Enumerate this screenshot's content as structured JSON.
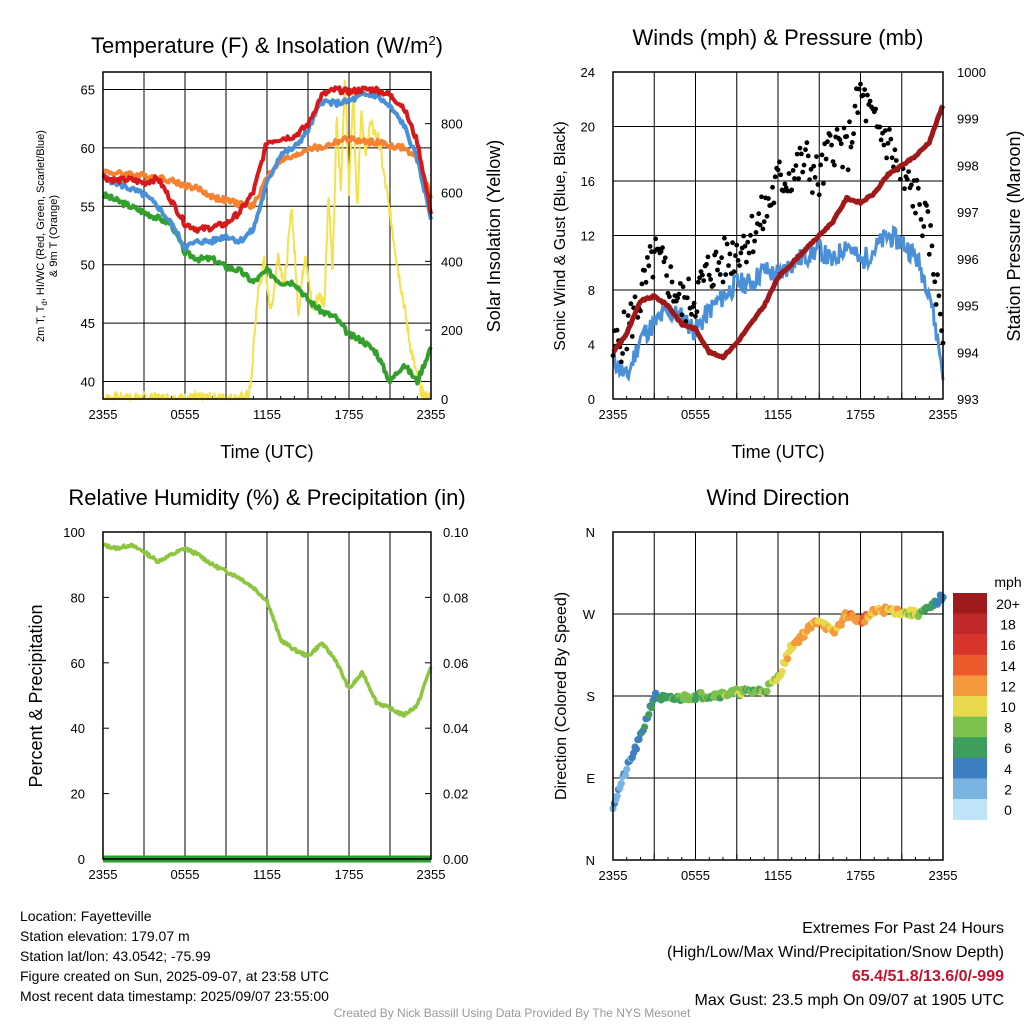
{
  "colors": {
    "temp": "#d7191c",
    "dewpoint": "#33a02c",
    "hiwc": "#4a90d9",
    "temp9m": "#f58231",
    "solar": "#f5e14c",
    "wind": "#4a90d9",
    "gust": "#000000",
    "pressure": "#a01818",
    "rh": "#8cc63f",
    "precip": "#2e9e35",
    "extremes": "#c8102e",
    "credit": "#999999"
  },
  "chart_data": [
    {
      "type": "line",
      "title": "Temperature (F) & Insolation (W/m²)",
      "xlabel": "Time (UTC)",
      "ylabel": "2m T, Td, HI/WC (Red, Green, Scarlet/Blue) & 9m T (Orange)",
      "ylabel_right": "Solar Insolation (Yellow)",
      "x_ticks": [
        "2355",
        "0555",
        "1155",
        "1755",
        "2355"
      ],
      "y_ticks": [
        "40",
        "45",
        "50",
        "55",
        "60",
        "65"
      ],
      "y_ticks_right": [
        "0",
        "200",
        "400",
        "600",
        "800"
      ],
      "ylim": [
        38.5,
        66.5
      ],
      "ylim_right": [
        0,
        950
      ],
      "grid": true,
      "x": [
        0,
        1,
        2,
        3,
        4,
        5,
        6,
        7,
        8,
        9,
        10,
        11,
        12,
        13,
        14,
        15,
        16,
        17,
        18,
        19,
        20,
        21,
        22,
        23,
        24
      ],
      "series": [
        {
          "key": "temp",
          "values": [
            57.5,
            57.2,
            57.3,
            57.0,
            57.4,
            55.5,
            53.5,
            53.0,
            53.2,
            53.5,
            54.5,
            56.2,
            60.5,
            60.8,
            61.0,
            62.0,
            64.5,
            65.0,
            64.8,
            65.0,
            65.0,
            64.5,
            63.5,
            60.5,
            54.5
          ]
        },
        {
          "key": "hiwc",
          "values": [
            57.5,
            57.0,
            56.5,
            56.0,
            55.0,
            53.5,
            51.5,
            52.0,
            52.0,
            52.5,
            52.0,
            53.0,
            57.0,
            59.5,
            60.0,
            61.5,
            64.0,
            63.8,
            64.0,
            64.5,
            64.5,
            63.5,
            62.0,
            59.0,
            54.0
          ]
        },
        {
          "key": "temp9m",
          "values": [
            58.0,
            57.8,
            57.8,
            57.6,
            57.5,
            57.2,
            56.8,
            56.5,
            55.8,
            55.5,
            55.2,
            55.0,
            57.5,
            59.0,
            59.2,
            60.0,
            60.0,
            60.5,
            60.8,
            60.5,
            60.5,
            60.2,
            60.0,
            59.0,
            55.8
          ]
        },
        {
          "key": "dewpoint",
          "values": [
            56.0,
            55.5,
            55.0,
            54.5,
            54.0,
            53.5,
            51.0,
            50.5,
            50.5,
            49.8,
            49.5,
            48.5,
            49.5,
            48.5,
            48.5,
            47.0,
            46.0,
            45.5,
            44.0,
            43.5,
            42.5,
            40.0,
            41.5,
            40.0,
            43.0
          ]
        }
      ],
      "solar": {
        "x": [
          0,
          3,
          6,
          9,
          10.4,
          10.8,
          11.3,
          11.8,
          12.3,
          12.8,
          13.3,
          13.8,
          14.3,
          14.8,
          15.3,
          15.8,
          16.2,
          16.5,
          16.8,
          17.1,
          17.4,
          17.7,
          18.0,
          18.3,
          18.6,
          18.9,
          19.2,
          19.5,
          19.8,
          20.2,
          20.6,
          21.0,
          21.5,
          22.0,
          22.5,
          23.0,
          23.4,
          24
        ],
        "values": [
          0,
          0,
          0,
          0,
          0,
          30,
          300,
          400,
          250,
          420,
          330,
          560,
          250,
          430,
          260,
          300,
          280,
          600,
          360,
          820,
          600,
          950,
          600,
          900,
          550,
          850,
          700,
          800,
          780,
          750,
          640,
          540,
          400,
          280,
          150,
          60,
          10,
          0
        ]
      }
    },
    {
      "type": "scatter",
      "title": "Winds (mph) & Pressure (mb)",
      "xlabel": "Time (UTC)",
      "ylabel": "Sonic Wind & Gust (Blue, Black)",
      "ylabel_right": "Station Pressure (Maroon)",
      "x_ticks": [
        "2355",
        "0555",
        "1155",
        "1755",
        "2355"
      ],
      "y_ticks": [
        "0",
        "4",
        "8",
        "12",
        "16",
        "20",
        "24"
      ],
      "y_ticks_right": [
        "993",
        "994",
        "995",
        "996",
        "997",
        "998",
        "999",
        "1000"
      ],
      "ylim": [
        0,
        24
      ],
      "ylim_right": [
        993,
        1000
      ],
      "grid": true,
      "x": [
        0,
        1,
        2,
        3,
        4,
        5,
        6,
        7,
        8,
        9,
        10,
        11,
        12,
        13,
        14,
        15,
        16,
        17,
        18,
        19,
        20,
        21,
        22,
        23,
        24
      ],
      "series": [
        {
          "key": "wind",
          "values": [
            3.0,
            1.5,
            4.5,
            5.5,
            6.5,
            6.0,
            5.0,
            6.5,
            7.5,
            8.5,
            8.5,
            9.5,
            9.0,
            10.0,
            10.5,
            11.0,
            10.0,
            11.5,
            10.0,
            11.0,
            12.0,
            11.5,
            10.5,
            8.0,
            2.0
          ]
        },
        {
          "key": "gust",
          "values": [
            3.5,
            5.0,
            7.5,
            10.5,
            9.0,
            7.0,
            7.5,
            9.5,
            10.0,
            11.0,
            12.0,
            13.5,
            16.0,
            16.5,
            17.5,
            16.0,
            19.0,
            18.0,
            22.5,
            20.0,
            19.0,
            16.0,
            15.0,
            12.0,
            5.0
          ]
        },
        {
          "key": "pressure",
          "values": [
            994.0,
            994.4,
            995.1,
            995.2,
            995.0,
            994.6,
            994.5,
            994.0,
            993.9,
            994.2,
            994.6,
            995.0,
            995.6,
            995.9,
            996.2,
            996.5,
            996.8,
            997.3,
            997.2,
            997.4,
            997.8,
            998.0,
            998.2,
            998.5,
            999.3
          ]
        }
      ]
    },
    {
      "type": "line",
      "title": "Relative Humidity (%) & Precipitation (in)",
      "ylabel": "Percent & Precipitation",
      "x_ticks": [
        "2355",
        "0555",
        "1155",
        "1755",
        "2355"
      ],
      "y_ticks": [
        "0",
        "20",
        "40",
        "60",
        "80",
        "100"
      ],
      "y_ticks_right": [
        "0.00",
        "0.02",
        "0.04",
        "0.06",
        "0.08",
        "0.10"
      ],
      "ylim": [
        0,
        100
      ],
      "ylim_right": [
        0,
        0.1
      ],
      "grid": true,
      "x": [
        0,
        1,
        2,
        3,
        4,
        5,
        6,
        7,
        8,
        9,
        10,
        11,
        12,
        13,
        14,
        15,
        16,
        17,
        18,
        19,
        20,
        21,
        22,
        23,
        24
      ],
      "series": [
        {
          "key": "rh",
          "values": [
            96,
            95,
            96,
            94,
            91,
            93,
            95,
            93,
            90,
            88,
            86,
            83,
            79,
            67,
            64,
            62,
            66,
            61,
            52,
            57,
            48,
            46,
            44,
            47,
            59
          ]
        },
        {
          "key": "precip",
          "values": [
            0,
            0,
            0,
            0,
            0,
            0,
            0,
            0,
            0,
            0,
            0,
            0,
            0,
            0,
            0,
            0,
            0,
            0,
            0,
            0,
            0,
            0,
            0,
            0,
            0
          ]
        }
      ]
    },
    {
      "type": "scatter",
      "title": "Wind Direction",
      "ylabel": "Direction (Colored By Speed)",
      "x_ticks": [
        "2355",
        "0555",
        "1155",
        "1755",
        "2355"
      ],
      "y_ticks": [
        "N",
        "E",
        "S",
        "W",
        "N"
      ],
      "ylim": [
        0,
        360
      ],
      "legend_title": "mph",
      "legend_labels": [
        "20+",
        "18",
        "16",
        "14",
        "12",
        "10",
        "8",
        "6",
        "4",
        "2",
        "0"
      ],
      "legend_colors": [
        "#9e1b1b",
        "#c0282a",
        "#d7352c",
        "#ea5a2a",
        "#f59a3c",
        "#e9d84c",
        "#7cc04e",
        "#3e9e5e",
        "#3d7fc1",
        "#79b4e3",
        "#bfe3f7"
      ],
      "x": [
        0,
        1,
        2,
        3,
        4,
        5,
        6,
        7,
        8,
        9,
        10,
        11,
        12,
        13,
        14,
        15,
        16,
        17,
        18,
        19,
        20,
        21,
        22,
        23,
        24
      ],
      "direction": [
        60,
        100,
        135,
        180,
        176,
        178,
        180,
        181,
        182,
        184,
        185,
        186,
        200,
        235,
        250,
        265,
        248,
        270,
        262,
        272,
        275,
        272,
        270,
        275,
        290
      ],
      "speed": [
        2,
        3,
        5,
        5,
        6,
        7,
        7,
        7,
        8,
        8,
        8,
        8,
        9,
        11,
        12,
        10,
        11,
        12,
        13,
        11,
        12,
        10,
        9,
        6,
        4
      ]
    }
  ],
  "info": {
    "location": "Location: Fayetteville",
    "elevation": "Station elevation: 179.07 m",
    "latlon": "Station lat/lon: 43.0542; -75.99",
    "created": "Figure created on Sun, 2025-09-07, at 23:58 UTC",
    "recent": "Most recent data timestamp: 2025/09/07 23:55:00",
    "extremes_title": "Extremes For Past 24 Hours",
    "extremes_subtitle": "(High/Low/Max Wind/Precipitation/Snow Depth)",
    "extremes_values": "65.4/51.8/13.6/0/-999",
    "max_gust": "Max Gust: 23.5 mph On 09/07 at 1905 UTC",
    "credit": "Created By Nick Bassill Using Data Provided By The NYS Mesonet"
  }
}
